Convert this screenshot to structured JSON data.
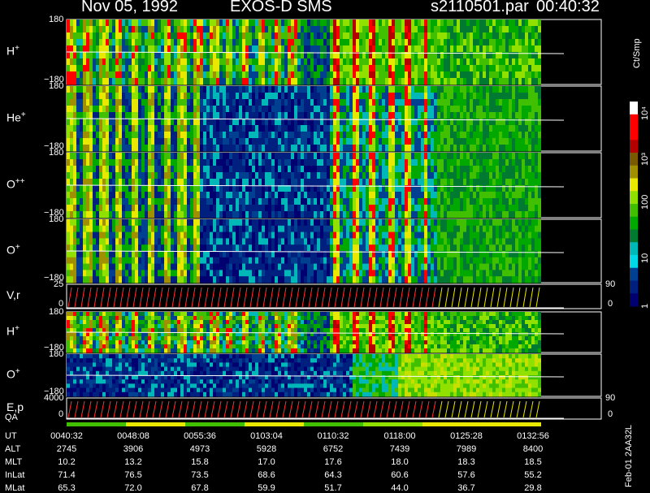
{
  "header": {
    "date": "Nov 05, 1992",
    "instrument": "EXOS-D SMS",
    "file": "s2110501.par",
    "time": "00:40:32"
  },
  "colorbar": {
    "title": "Ct/Smp",
    "ticks": [
      "10⁴",
      "10³",
      "100",
      "10",
      "1"
    ],
    "colors": [
      "#ffffff",
      "#ff0000",
      "#ff0000",
      "#b40000",
      "#7a5a00",
      "#a09000",
      "#e8e800",
      "#90e000",
      "#40c000",
      "#00a800",
      "#007a30",
      "#00b8b8",
      "#00d8e8",
      "#004090",
      "#002080",
      "#000070"
    ]
  },
  "panels": [
    {
      "label": "H",
      "sup": "+",
      "top": "180",
      "bottom": "−180"
    },
    {
      "label": "He",
      "sup": "+",
      "top": "180",
      "bottom": "−180"
    },
    {
      "label": "O",
      "sup": "++",
      "top": "180",
      "bottom": "−180"
    },
    {
      "label": "O",
      "sup": "+",
      "top": "180",
      "bottom": "−180"
    },
    {
      "label": "V,r",
      "sup": "",
      "top": "25",
      "bottom": "0",
      "rtop": "90",
      "rbottom": "0"
    },
    {
      "label": "H",
      "sup": "+",
      "top": "180",
      "bottom": "−180"
    },
    {
      "label": "O",
      "sup": "+",
      "top": "180",
      "bottom": "−180"
    },
    {
      "label": "E,p",
      "sup": "",
      "top": "4000",
      "bottom": "0",
      "rtop": "90",
      "rbottom": "0"
    }
  ],
  "qa_label": "QA",
  "side_label": "Feb-01 2AA32L",
  "axis_table": {
    "rows": [
      {
        "name": "UT",
        "values": [
          "0040:32",
          "0048:08",
          "0055:36",
          "0103:04",
          "0110:32",
          "0118:00",
          "0125:28",
          "0132:56"
        ]
      },
      {
        "name": "ALT",
        "values": [
          "2745",
          "3906",
          "4973",
          "5928",
          "6752",
          "7439",
          "7989",
          "8400"
        ]
      },
      {
        "name": "MLT",
        "values": [
          "10.2",
          "13.2",
          "15.8",
          "17.0",
          "17.6",
          "18.0",
          "18.3",
          "18.5"
        ]
      },
      {
        "name": "InLat",
        "values": [
          "71.4",
          "76.5",
          "73.5",
          "68.6",
          "64.3",
          "60.6",
          "57.6",
          "55.2"
        ]
      },
      {
        "name": "MLat",
        "values": [
          "65.3",
          "72.0",
          "67.8",
          "59.9",
          "51.7",
          "44.0",
          "36.7",
          "29.8"
        ]
      }
    ]
  },
  "chart_data": {
    "type": "heatmap",
    "title": "Nov 05, 1992   EXOS-D SMS   s2110501.par   00:40:32",
    "x": [
      "0040:32",
      "0048:08",
      "0055:36",
      "0103:04",
      "0110:32",
      "0118:00",
      "0125:28",
      "0132:56"
    ],
    "series": [
      {
        "name": "H+",
        "ylim": [
          -180,
          180
        ]
      },
      {
        "name": "He+",
        "ylim": [
          -180,
          180
        ]
      },
      {
        "name": "O++",
        "ylim": [
          -180,
          180
        ]
      },
      {
        "name": "O+",
        "ylim": [
          -180,
          180
        ]
      },
      {
        "name": "V,r",
        "ylim": [
          0,
          25
        ]
      },
      {
        "name": "H+",
        "ylim": [
          -180,
          180
        ]
      },
      {
        "name": "O+",
        "ylim": [
          -180,
          180
        ]
      },
      {
        "name": "E,p",
        "ylim": [
          0,
          4000
        ]
      }
    ],
    "colorbar_unit": "Ct/Smp",
    "colorbar_range": [
      1,
      10000
    ],
    "colorbar_scale": "log"
  }
}
